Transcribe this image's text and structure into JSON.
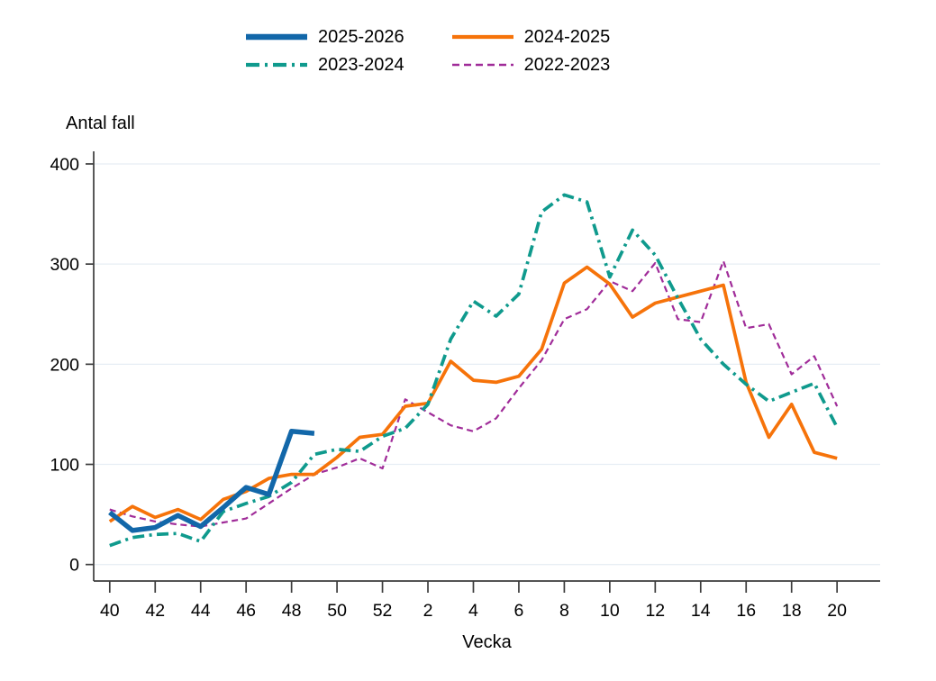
{
  "chart_data": {
    "type": "line",
    "title": "",
    "ylabel": "Antal fall",
    "xlabel": "Vecka",
    "ylim": [
      0,
      400
    ],
    "yticks": [
      0,
      100,
      200,
      300,
      400
    ],
    "grid": "horizontal",
    "legend_position": "top-center",
    "x_categories": [
      "40",
      "41",
      "42",
      "43",
      "44",
      "45",
      "46",
      "47",
      "48",
      "49",
      "50",
      "51",
      "52",
      "1",
      "2",
      "3",
      "4",
      "5",
      "6",
      "7",
      "8",
      "9",
      "10",
      "11",
      "12",
      "13",
      "14",
      "15",
      "16",
      "17",
      "18",
      "19",
      "20"
    ],
    "x_tick_labels": [
      "40",
      "42",
      "44",
      "46",
      "48",
      "50",
      "52",
      "2",
      "4",
      "6",
      "8",
      "10",
      "12",
      "14",
      "16",
      "18",
      "20"
    ],
    "series": [
      {
        "name": "2025-2026",
        "color": "#1267A9",
        "line_style": "solid",
        "line_weight": "thick",
        "values": [
          52,
          34,
          37,
          49,
          38,
          57,
          77,
          70,
          133,
          131
        ]
      },
      {
        "name": "2024-2025",
        "color": "#F6730A",
        "line_style": "solid",
        "line_weight": "medium",
        "values": [
          43,
          58,
          47,
          55,
          45,
          65,
          73,
          86,
          90,
          90,
          107,
          127,
          130,
          158,
          161,
          203,
          184,
          182,
          188,
          215,
          281,
          297,
          280,
          247,
          261,
          267,
          273,
          279,
          182,
          127,
          160,
          112,
          106
        ]
      },
      {
        "name": "2023-2024",
        "color": "#0F9A8D",
        "line_style": "dash-dot",
        "line_weight": "medium",
        "values": [
          19,
          27,
          30,
          31,
          23,
          53,
          61,
          68,
          82,
          110,
          115,
          113,
          128,
          136,
          160,
          225,
          263,
          248,
          270,
          352,
          369,
          362,
          287,
          334,
          309,
          266,
          225,
          200,
          180,
          163,
          172,
          181,
          137
        ]
      },
      {
        "name": "2022-2023",
        "color": "#A02C99",
        "line_style": "dashed",
        "line_weight": "thin",
        "values": [
          55,
          48,
          43,
          40,
          38,
          42,
          46,
          61,
          76,
          90,
          97,
          106,
          96,
          165,
          152,
          139,
          133,
          146,
          176,
          204,
          245,
          255,
          283,
          273,
          301,
          245,
          242,
          303,
          236,
          240,
          190,
          208,
          158
        ]
      }
    ]
  },
  "colors": {
    "background": "#FFFFFF",
    "axis": "#3C3C3C",
    "gridline": "#E7EEF4",
    "text": "#000000"
  }
}
